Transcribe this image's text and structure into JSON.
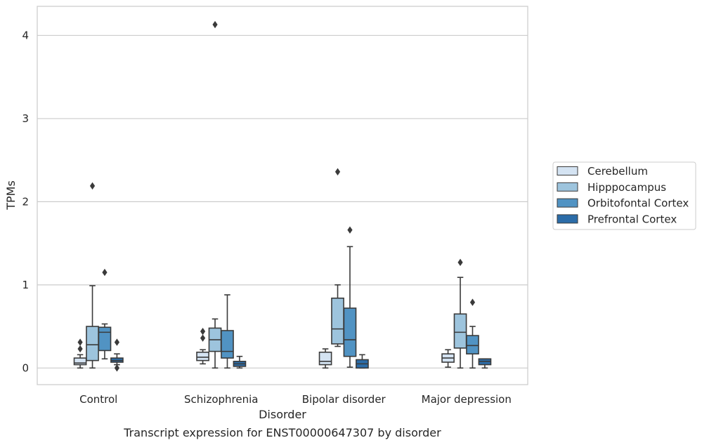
{
  "chart_data": {
    "type": "box",
    "caption": "Transcript expression for ENST00000647307 by disorder",
    "xlabel": "Disorder",
    "ylabel": "TPMs",
    "ylim": [
      -0.2,
      4.35
    ],
    "yticks": [
      0,
      1,
      2,
      3,
      4
    ],
    "grid": "horizontal",
    "legend_position": "right",
    "categories": [
      "Control",
      "Schizophrenia",
      "Bipolar disorder",
      "Major depression"
    ],
    "series": [
      {
        "name": "Cerebellum",
        "color": "#d4e3f2",
        "boxes": [
          {
            "min": 0.0,
            "q1": 0.04,
            "median": 0.06,
            "q3": 0.12,
            "max": 0.16,
            "outliers": [
              0.23,
              0.31
            ]
          },
          {
            "min": 0.05,
            "q1": 0.09,
            "median": 0.13,
            "q3": 0.19,
            "max": 0.22,
            "outliers": [
              0.36,
              0.44
            ]
          },
          {
            "min": 0.0,
            "q1": 0.04,
            "median": 0.08,
            "q3": 0.19,
            "max": 0.23,
            "outliers": []
          },
          {
            "min": 0.01,
            "q1": 0.07,
            "median": 0.12,
            "q3": 0.17,
            "max": 0.22,
            "outliers": []
          }
        ]
      },
      {
        "name": "Hipppocampus",
        "color": "#9dc4dd",
        "boxes": [
          {
            "min": 0.0,
            "q1": 0.09,
            "median": 0.28,
            "q3": 0.5,
            "max": 0.99,
            "outliers": [
              2.19
            ]
          },
          {
            "min": 0.0,
            "q1": 0.2,
            "median": 0.34,
            "q3": 0.48,
            "max": 0.59,
            "outliers": [
              4.13
            ]
          },
          {
            "min": 0.26,
            "q1": 0.29,
            "median": 0.47,
            "q3": 0.84,
            "max": 1.0,
            "outliers": [
              2.36
            ]
          },
          {
            "min": 0.0,
            "q1": 0.24,
            "median": 0.43,
            "q3": 0.65,
            "max": 1.09,
            "outliers": [
              1.27
            ]
          }
        ]
      },
      {
        "name": "Orbitofontal Cortex",
        "color": "#5193c3",
        "boxes": [
          {
            "min": 0.11,
            "q1": 0.21,
            "median": 0.43,
            "q3": 0.49,
            "max": 0.53,
            "outliers": [
              1.15
            ]
          },
          {
            "min": 0.0,
            "q1": 0.12,
            "median": 0.2,
            "q3": 0.45,
            "max": 0.88,
            "outliers": []
          },
          {
            "min": 0.01,
            "q1": 0.14,
            "median": 0.34,
            "q3": 0.72,
            "max": 1.46,
            "outliers": [
              1.66
            ]
          },
          {
            "min": 0.0,
            "q1": 0.17,
            "median": 0.27,
            "q3": 0.39,
            "max": 0.5,
            "outliers": [
              0.79
            ]
          }
        ]
      },
      {
        "name": "Prefrontal Cortex",
        "color": "#2b6ca8",
        "boxes": [
          {
            "min": 0.04,
            "q1": 0.07,
            "median": 0.09,
            "q3": 0.12,
            "max": 0.17,
            "outliers": [
              0.31,
              0.0
            ]
          },
          {
            "min": 0.0,
            "q1": 0.02,
            "median": 0.05,
            "q3": 0.08,
            "max": 0.14,
            "outliers": []
          },
          {
            "min": 0.0,
            "q1": 0.0,
            "median": 0.05,
            "q3": 0.1,
            "max": 0.16,
            "outliers": []
          },
          {
            "min": 0.0,
            "q1": 0.04,
            "median": 0.08,
            "q3": 0.11,
            "max": 0.11,
            "outliers": []
          }
        ]
      }
    ]
  }
}
